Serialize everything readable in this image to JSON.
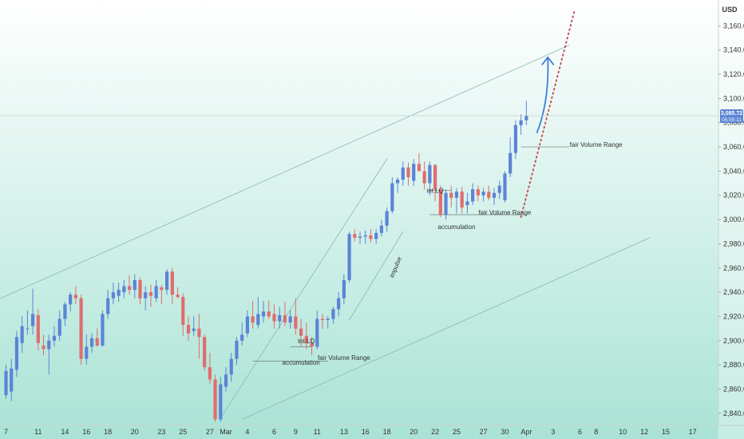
{
  "chart_data": {
    "type": "candlestick",
    "currency": "USD",
    "ylim": [
      2830,
      3180
    ],
    "y_ticks": [
      2840,
      2860,
      2880,
      2900,
      2920,
      2940,
      2960,
      2980,
      3000,
      3020,
      3040,
      3060,
      3080,
      3100,
      3120,
      3140,
      3160
    ],
    "x_ticks": [
      {
        "label": "7",
        "bar": 0
      },
      {
        "label": "11",
        "bar": 6
      },
      {
        "label": "14",
        "bar": 11
      },
      {
        "label": "16",
        "bar": 15
      },
      {
        "label": "18",
        "bar": 19
      },
      {
        "label": "20",
        "bar": 24
      },
      {
        "label": "23",
        "bar": 29
      },
      {
        "label": "25",
        "bar": 33
      },
      {
        "label": "27",
        "bar": 38
      },
      {
        "label": "Mar",
        "bar": 41
      },
      {
        "label": "4",
        "bar": 45
      },
      {
        "label": "6",
        "bar": 50
      },
      {
        "label": "9",
        "bar": 54
      },
      {
        "label": "11",
        "bar": 58
      },
      {
        "label": "13",
        "bar": 63
      },
      {
        "label": "16",
        "bar": 67
      },
      {
        "label": "18",
        "bar": 71
      },
      {
        "label": "20",
        "bar": 76
      },
      {
        "label": "22",
        "bar": 80
      },
      {
        "label": "25",
        "bar": 84
      },
      {
        "label": "27",
        "bar": 89
      },
      {
        "label": "30",
        "bar": 93
      },
      {
        "label": "Apr",
        "bar": 97
      },
      {
        "label": "3",
        "bar": 102
      },
      {
        "label": "6",
        "bar": 107
      },
      {
        "label": "8",
        "bar": 110
      },
      {
        "label": "10",
        "bar": 115
      },
      {
        "label": "12",
        "bar": 119
      },
      {
        "label": "15",
        "bar": 123
      },
      {
        "label": "17",
        "bar": 128
      }
    ],
    "candles": [
      {
        "o": 2855,
        "h": 2880,
        "l": 2852,
        "c": 2875
      },
      {
        "o": 2858,
        "h": 2885,
        "l": 2850,
        "c": 2877
      },
      {
        "o": 2876,
        "h": 2908,
        "l": 2870,
        "c": 2903
      },
      {
        "o": 2898,
        "h": 2920,
        "l": 2890,
        "c": 2912
      },
      {
        "o": 2910,
        "h": 2925,
        "l": 2905,
        "c": 2910
      },
      {
        "o": 2912,
        "h": 2943,
        "l": 2905,
        "c": 2922
      },
      {
        "o": 2921,
        "h": 2926,
        "l": 2892,
        "c": 2898
      },
      {
        "o": 2896,
        "h": 2905,
        "l": 2888,
        "c": 2893
      },
      {
        "o": 2893,
        "h": 2905,
        "l": 2872,
        "c": 2900
      },
      {
        "o": 2900,
        "h": 2912,
        "l": 2895,
        "c": 2904
      },
      {
        "o": 2904,
        "h": 2925,
        "l": 2900,
        "c": 2918
      },
      {
        "o": 2918,
        "h": 2932,
        "l": 2912,
        "c": 2930
      },
      {
        "o": 2930,
        "h": 2940,
        "l": 2924,
        "c": 2938
      },
      {
        "o": 2938,
        "h": 2945,
        "l": 2930,
        "c": 2935
      },
      {
        "o": 2935,
        "h": 2938,
        "l": 2880,
        "c": 2885
      },
      {
        "o": 2885,
        "h": 2905,
        "l": 2880,
        "c": 2895
      },
      {
        "o": 2895,
        "h": 2906,
        "l": 2890,
        "c": 2902
      },
      {
        "o": 2902,
        "h": 2910,
        "l": 2895,
        "c": 2896
      },
      {
        "o": 2896,
        "h": 2925,
        "l": 2895,
        "c": 2922
      },
      {
        "o": 2922,
        "h": 2942,
        "l": 2918,
        "c": 2935
      },
      {
        "o": 2935,
        "h": 2948,
        "l": 2930,
        "c": 2940
      },
      {
        "o": 2937,
        "h": 2948,
        "l": 2932,
        "c": 2942
      },
      {
        "o": 2940,
        "h": 2950,
        "l": 2935,
        "c": 2945
      },
      {
        "o": 2945,
        "h": 2954,
        "l": 2938,
        "c": 2942
      },
      {
        "o": 2942,
        "h": 2955,
        "l": 2935,
        "c": 2950
      },
      {
        "o": 2950,
        "h": 2952,
        "l": 2930,
        "c": 2935
      },
      {
        "o": 2935,
        "h": 2945,
        "l": 2925,
        "c": 2940
      },
      {
        "o": 2940,
        "h": 2946,
        "l": 2928,
        "c": 2937
      },
      {
        "o": 2935,
        "h": 2950,
        "l": 2932,
        "c": 2945
      },
      {
        "o": 2944,
        "h": 2946,
        "l": 2930,
        "c": 2942
      },
      {
        "o": 2942,
        "h": 2959,
        "l": 2938,
        "c": 2957
      },
      {
        "o": 2957,
        "h": 2960,
        "l": 2930,
        "c": 2938
      },
      {
        "o": 2938,
        "h": 2944,
        "l": 2935,
        "c": 2936
      },
      {
        "o": 2936,
        "h": 2939,
        "l": 2904,
        "c": 2913
      },
      {
        "o": 2913,
        "h": 2920,
        "l": 2900,
        "c": 2906
      },
      {
        "o": 2908,
        "h": 2920,
        "l": 2904,
        "c": 2910
      },
      {
        "o": 2910,
        "h": 2922,
        "l": 2885,
        "c": 2903
      },
      {
        "o": 2903,
        "h": 2905,
        "l": 2875,
        "c": 2878
      },
      {
        "o": 2878,
        "h": 2890,
        "l": 2864,
        "c": 2868
      },
      {
        "o": 2868,
        "h": 2872,
        "l": 2833,
        "c": 2835
      },
      {
        "o": 2835,
        "h": 2870,
        "l": 2833,
        "c": 2864
      },
      {
        "o": 2862,
        "h": 2878,
        "l": 2858,
        "c": 2872
      },
      {
        "o": 2872,
        "h": 2890,
        "l": 2866,
        "c": 2885
      },
      {
        "o": 2885,
        "h": 2903,
        "l": 2880,
        "c": 2900
      },
      {
        "o": 2900,
        "h": 2915,
        "l": 2896,
        "c": 2905
      },
      {
        "o": 2906,
        "h": 2925,
        "l": 2903,
        "c": 2920
      },
      {
        "o": 2920,
        "h": 2933,
        "l": 2910,
        "c": 2915
      },
      {
        "o": 2913,
        "h": 2936,
        "l": 2910,
        "c": 2922
      },
      {
        "o": 2920,
        "h": 2933,
        "l": 2915,
        "c": 2924
      },
      {
        "o": 2924,
        "h": 2933,
        "l": 2918,
        "c": 2920
      },
      {
        "o": 2922,
        "h": 2930,
        "l": 2910,
        "c": 2916
      },
      {
        "o": 2916,
        "h": 2928,
        "l": 2910,
        "c": 2921
      },
      {
        "o": 2921,
        "h": 2932,
        "l": 2912,
        "c": 2915
      },
      {
        "o": 2915,
        "h": 2925,
        "l": 2910,
        "c": 2920
      },
      {
        "o": 2920,
        "h": 2935,
        "l": 2905,
        "c": 2910
      },
      {
        "o": 2910,
        "h": 2918,
        "l": 2895,
        "c": 2904
      },
      {
        "o": 2904,
        "h": 2915,
        "l": 2893,
        "c": 2898
      },
      {
        "o": 2898,
        "h": 2903,
        "l": 2888,
        "c": 2895
      },
      {
        "o": 2895,
        "h": 2925,
        "l": 2893,
        "c": 2918
      },
      {
        "o": 2918,
        "h": 2922,
        "l": 2910,
        "c": 2917
      },
      {
        "o": 2917,
        "h": 2920,
        "l": 2910,
        "c": 2918
      },
      {
        "o": 2918,
        "h": 2928,
        "l": 2914,
        "c": 2926
      },
      {
        "o": 2926,
        "h": 2940,
        "l": 2920,
        "c": 2935
      },
      {
        "o": 2935,
        "h": 2955,
        "l": 2930,
        "c": 2950
      },
      {
        "o": 2950,
        "h": 2990,
        "l": 2948,
        "c": 2988
      },
      {
        "o": 2988,
        "h": 2992,
        "l": 2982,
        "c": 2985
      },
      {
        "o": 2985,
        "h": 2990,
        "l": 2980,
        "c": 2986
      },
      {
        "o": 2986,
        "h": 2991,
        "l": 2980,
        "c": 2987
      },
      {
        "o": 2987,
        "h": 2992,
        "l": 2981,
        "c": 2984
      },
      {
        "o": 2984,
        "h": 2992,
        "l": 2980,
        "c": 2989
      },
      {
        "o": 2989,
        "h": 3000,
        "l": 2986,
        "c": 2995
      },
      {
        "o": 2995,
        "h": 3010,
        "l": 2990,
        "c": 3007
      },
      {
        "o": 3007,
        "h": 3035,
        "l": 3005,
        "c": 3030
      },
      {
        "o": 3030,
        "h": 3035,
        "l": 3022,
        "c": 3033
      },
      {
        "o": 3033,
        "h": 3048,
        "l": 3028,
        "c": 3043
      },
      {
        "o": 3043,
        "h": 3047,
        "l": 3028,
        "c": 3035
      },
      {
        "o": 3032,
        "h": 3050,
        "l": 3028,
        "c": 3046
      },
      {
        "o": 3046,
        "h": 3055,
        "l": 3040,
        "c": 3040
      },
      {
        "o": 3040,
        "h": 3048,
        "l": 3025,
        "c": 3030
      },
      {
        "o": 3030,
        "h": 3048,
        "l": 3020,
        "c": 3045
      },
      {
        "o": 3045,
        "h": 3046,
        "l": 3015,
        "c": 3025
      },
      {
        "o": 3025,
        "h": 3028,
        "l": 3002,
        "c": 3004
      },
      {
        "o": 3004,
        "h": 3025,
        "l": 3000,
        "c": 3022
      },
      {
        "o": 3022,
        "h": 3028,
        "l": 3010,
        "c": 3018
      },
      {
        "o": 3018,
        "h": 3026,
        "l": 3005,
        "c": 3023
      },
      {
        "o": 3023,
        "h": 3027,
        "l": 3005,
        "c": 3010
      },
      {
        "o": 3012,
        "h": 3022,
        "l": 3005,
        "c": 3015
      },
      {
        "o": 3015,
        "h": 3030,
        "l": 3012,
        "c": 3025
      },
      {
        "o": 3025,
        "h": 3028,
        "l": 3015,
        "c": 3020
      },
      {
        "o": 3020,
        "h": 3026,
        "l": 3015,
        "c": 3023
      },
      {
        "o": 3023,
        "h": 3028,
        "l": 3016,
        "c": 3018
      },
      {
        "o": 3018,
        "h": 3026,
        "l": 3012,
        "c": 3022
      },
      {
        "o": 3022,
        "h": 3032,
        "l": 3017,
        "c": 3028
      },
      {
        "o": 3016,
        "h": 3040,
        "l": 3014,
        "c": 3038
      },
      {
        "o": 3038,
        "h": 3068,
        "l": 3035,
        "c": 3055
      },
      {
        "o": 3055,
        "h": 3082,
        "l": 3050,
        "c": 3078
      },
      {
        "o": 3078,
        "h": 3087,
        "l": 3070,
        "c": 3082
      },
      {
        "o": 3082,
        "h": 3098,
        "l": 3078,
        "c": 3086
      }
    ],
    "current_price": {
      "label": "3,085.72",
      "countdown": "05:55:11",
      "value": 3085.72
    },
    "annotations": [
      {
        "text": "accumulation",
        "bar": 55,
        "price": 2880
      },
      {
        "text": "int.LQ",
        "bar": 56,
        "price": 2898
      },
      {
        "text": "fair Volume Range",
        "bar": 63,
        "price": 2884
      },
      {
        "text": "impulse",
        "bar": 73,
        "price": 2960
      },
      {
        "text": "int.LQ",
        "bar": 80,
        "price": 3022
      },
      {
        "text": "accumulation",
        "bar": 84,
        "price": 2992
      },
      {
        "text": "fair Volume Range",
        "bar": 93,
        "price": 3004
      },
      {
        "text": "fair Volume Range",
        "bar": 110,
        "price": 3060
      }
    ],
    "trendlines": [
      {
        "kind": "channel-upper",
        "from": {
          "bar": -1,
          "price": 2935
        },
        "to": {
          "bar": 105,
          "price": 3144
        }
      },
      {
        "kind": "channel-lower",
        "from": {
          "bar": 44,
          "price": 2835
        },
        "to": {
          "bar": 120,
          "price": 2985
        }
      },
      {
        "kind": "impulse-left",
        "from": {
          "bar": 40,
          "price": 2836
        },
        "to": {
          "bar": 71,
          "price": 3050
        }
      },
      {
        "kind": "impulse-right",
        "from": {
          "bar": 64,
          "price": 2917
        },
        "to": {
          "bar": 74,
          "price": 2990
        }
      },
      {
        "kind": "projection-dotted",
        "from": {
          "bar": 96,
          "price": 3002
        },
        "to": {
          "bar": 106,
          "price": 3173
        }
      }
    ],
    "range_lines": [
      {
        "from": 46,
        "to": 60,
        "price": 2883
      },
      {
        "from": 53,
        "to": 57,
        "price": 2895
      },
      {
        "from": 79,
        "to": 83,
        "price": 3024
      },
      {
        "from": 79,
        "to": 97,
        "price": 3004
      },
      {
        "from": 96,
        "to": 105,
        "price": 3060
      }
    ],
    "arrow": {
      "from": {
        "bar": 99,
        "price": 3072
      },
      "to": {
        "bar": 101,
        "price": 3134
      }
    },
    "colors": {
      "up": "#5b84d6",
      "down": "#e06d6d",
      "bg_top": "#ffffff",
      "bg_bottom": "#a9e3d5",
      "price_label": "#5b84d6",
      "arrow": "#3f7fd8",
      "projection": "#c8515b",
      "trendline": "#8ab8b0"
    }
  }
}
